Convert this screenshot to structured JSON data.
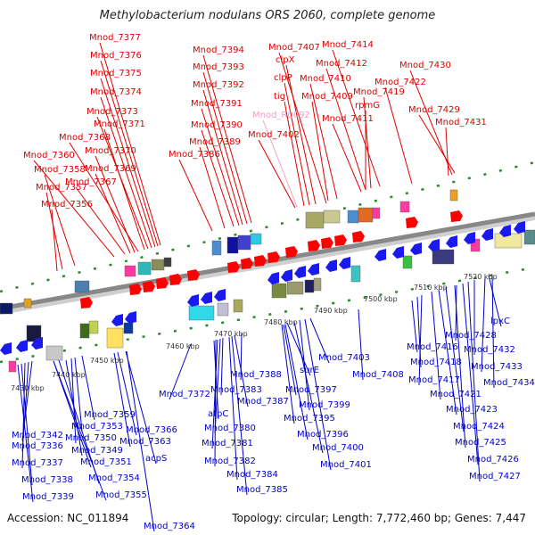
{
  "title": "Methylobacterium nodulans ORS 2060, complete genome",
  "accession": "Accession: NC_011894",
  "topology": "Topology: circular; Length: 7,772,460 bp; Genes: 7,447",
  "colors": {
    "backbone": "#888888",
    "forward_label": "#dd0000",
    "reverse_label": "#0000cc",
    "highlight_label": "#f0a0c8"
  },
  "kbp_ticks": [
    "7430 kbp",
    "7440 kbp",
    "7450 kbp",
    "7460 kbp",
    "7470 kbp",
    "7480 kbp",
    "7490 kbp",
    "7500 kbp",
    "7510 kbp",
    "7520 kbp"
  ],
  "forward_genes": [
    "Mnod_7377",
    "Mnod_7376",
    "Mnod_7375",
    "Mnod_7374",
    "Mnod_7373",
    "Mnod_7371",
    "Mnod_7368",
    "Mnod_7370",
    "Mnod_7360",
    "Mnod_7369",
    "Mnod_7358",
    "Mnod_7367",
    "Mnod_7357",
    "Mnod_7356",
    "Mnod_7394",
    "Mnod_7393",
    "Mnod_7392",
    "Mnod_7391",
    "Mnod_7390",
    "Mnod_7389",
    "Mnod_7386",
    "Mnod_7407",
    "clpX",
    "clpP",
    "tig",
    "Mnod_7402",
    "Mnod_7414",
    "Mnod_7412",
    "Mnod_7410",
    "Mnod_7409",
    "Mnod_7411",
    "rpmG",
    "Mnod_7419",
    "Mnod_7422",
    "Mnod_7430",
    "Mnod_7429",
    "Mnod_7431"
  ],
  "highlight_genes": [
    "Mnod_R0092"
  ],
  "reverse_genes": [
    "Mnod_7342",
    "Mnod_7336",
    "Mnod_7337",
    "Mnod_7338",
    "Mnod_7339",
    "Mnod_7359",
    "Mnod_7353",
    "Mnod_7350",
    "Mnod_7349",
    "Mnod_7351",
    "Mnod_7354",
    "Mnod_7355",
    "Mnod_7366",
    "Mnod_7363",
    "acpS",
    "Mnod_7364",
    "Mnod_7372",
    "atpC",
    "Mnod_7383",
    "Mnod_7380",
    "Mnod_7381",
    "Mnod_7382",
    "Mnod_7384",
    "Mnod_7385",
    "Mnod_7388",
    "Mnod_7387",
    "Mnod_7397",
    "surE",
    "Mnod_7403",
    "Mnod_7399",
    "Mnod_7395",
    "Mnod_7396",
    "Mnod_7400",
    "Mnod_7401",
    "Mnod_7408",
    "Mnod_7416",
    "Mnod_7418",
    "Mnod_7417",
    "Mnod_7421",
    "Mnod_7423",
    "Mnod_7424",
    "Mnod_7425",
    "Mnod_7426",
    "Mnod_7427",
    "lpxC",
    "Mnod_7428",
    "Mnod_7432",
    "Mnod_7433",
    "Mnod_7434"
  ]
}
